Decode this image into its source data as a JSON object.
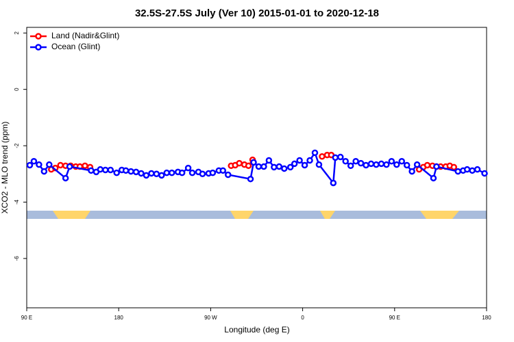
{
  "chart_data": {
    "type": "line",
    "title": "32.5S-27.5S July (Ver 10)   2015-01-01 to 2020-12-18",
    "x_label": "Longitude (deg E)",
    "y_label": "XCO2 - MLO trend (ppm)",
    "xlim": [
      90,
      540
    ],
    "ylim": [
      -7.75,
      2.2
    ],
    "xticks": [
      {
        "value": 90,
        "label": "90 E"
      },
      180,
      {
        "value": 270,
        "label": "90 W"
      },
      {
        "value": 360,
        "label": "0"
      },
      {
        "value": 450,
        "label": "90 E"
      },
      {
        "value": 540,
        "label": "180"
      }
    ],
    "yticks": [
      -6,
      -4,
      -2,
      0,
      2
    ],
    "legend_position": "top-left",
    "series": [
      {
        "name": "Land (Nadir&Glint)",
        "color": "#ff0000",
        "x": [
          114,
          118,
          123,
          128,
          133,
          138,
          142,
          147,
          152,
          null,
          290,
          294,
          298,
          303,
          307,
          311,
          null,
          379,
          384,
          388,
          null,
          474,
          478,
          482,
          487,
          491,
          495,
          500,
          504,
          508
        ],
        "values": [
          -2.84,
          -2.79,
          -2.69,
          -2.71,
          -2.71,
          -2.74,
          -2.74,
          -2.71,
          -2.76,
          null,
          -2.71,
          -2.69,
          -2.62,
          -2.67,
          -2.71,
          -2.5,
          null,
          -2.38,
          -2.33,
          -2.33,
          null,
          -2.84,
          -2.76,
          -2.69,
          -2.71,
          -2.74,
          -2.74,
          -2.74,
          -2.71,
          -2.76
        ]
      },
      {
        "name": "Ocean (Glint)",
        "color": "#0000ff",
        "x": [
          93,
          97,
          102,
          107,
          112,
          128,
          132,
          153,
          158,
          162,
          167,
          172,
          178,
          183,
          187,
          192,
          197,
          202,
          207,
          212,
          217,
          222,
          227,
          232,
          238,
          242,
          248,
          252,
          258,
          262,
          268,
          272,
          278,
          282,
          287,
          309,
          312,
          317,
          322,
          327,
          332,
          337,
          342,
          348,
          352,
          357,
          362,
          367,
          372,
          376,
          390,
          392,
          397,
          402,
          407,
          412,
          417,
          422,
          427,
          432,
          437,
          442,
          447,
          452,
          457,
          462,
          467,
          472,
          488,
          491,
          512,
          517,
          521,
          526,
          531,
          538
        ],
        "values": [
          -2.69,
          -2.55,
          -2.67,
          -2.91,
          -2.67,
          -3.15,
          -2.74,
          -2.88,
          -2.93,
          -2.84,
          -2.86,
          -2.86,
          -2.96,
          -2.86,
          -2.88,
          -2.91,
          -2.93,
          -2.98,
          -3.05,
          -2.98,
          -3.0,
          -3.05,
          -2.96,
          -2.96,
          -2.93,
          -2.96,
          -2.79,
          -2.96,
          -2.93,
          -3.0,
          -2.98,
          -2.96,
          -2.88,
          -2.88,
          -3.03,
          -3.18,
          -2.59,
          -2.74,
          -2.74,
          -2.52,
          -2.76,
          -2.74,
          -2.81,
          -2.76,
          -2.64,
          -2.52,
          -2.69,
          -2.52,
          -2.25,
          -2.67,
          -3.32,
          -2.42,
          -2.4,
          -2.55,
          -2.71,
          -2.55,
          -2.62,
          -2.69,
          -2.64,
          -2.67,
          -2.64,
          -2.67,
          -2.55,
          -2.67,
          -2.55,
          -2.69,
          -2.91,
          -2.67,
          -3.15,
          -2.74,
          -2.91,
          -2.88,
          -2.84,
          -2.88,
          -2.84,
          -2.98
        ]
      }
    ]
  }
}
